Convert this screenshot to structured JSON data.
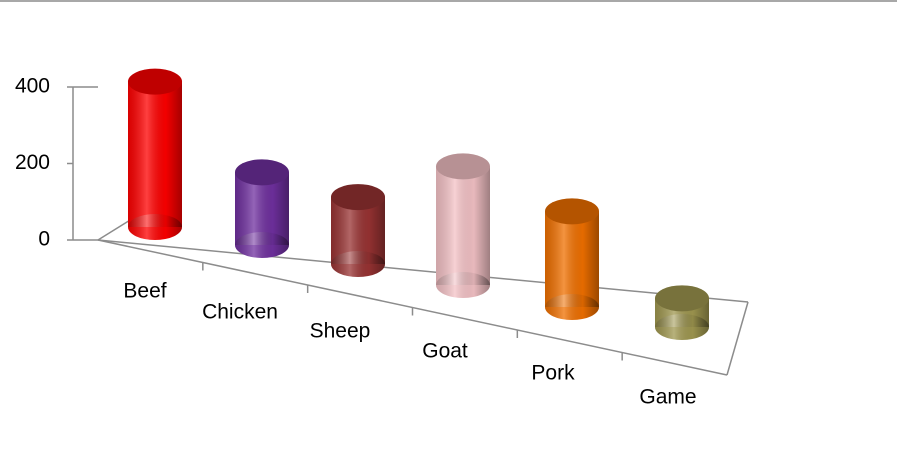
{
  "chart_data": {
    "type": "bar",
    "categories": [
      "Beef",
      "Chicken",
      "Sheep",
      "Goat",
      "Pork",
      "Game"
    ],
    "values": [
      380,
      190,
      175,
      310,
      250,
      75
    ],
    "colors": [
      "#ff0000",
      "#7030a0",
      "#993333",
      "#f4c2c6",
      "#f07000",
      "#a09850"
    ],
    "ylim": [
      0,
      400
    ],
    "yticks": [
      0,
      200,
      400
    ],
    "grid": false
  }
}
